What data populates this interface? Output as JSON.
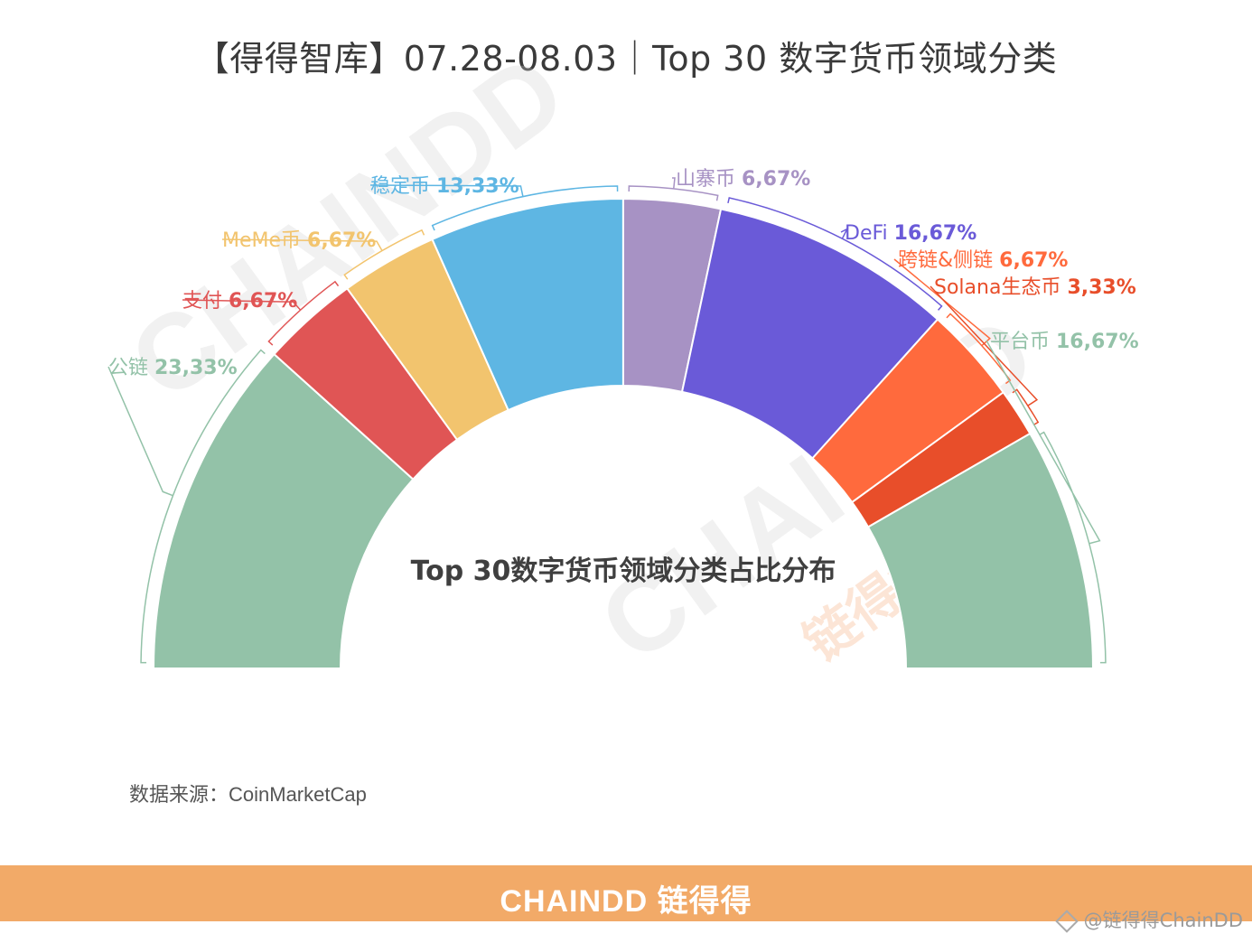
{
  "title": "【得得智库】07.28-08.03｜Top 30 数字货币领域分类",
  "watermark": {
    "text": "CHAINDD",
    "text_cn": "链得得"
  },
  "chart_data": {
    "type": "pie",
    "variant": "half-donut",
    "center_label": "Top 30数字货币领域分类占比分布",
    "slices": [
      {
        "label": "公链",
        "value": 23.33,
        "value_label": "23,33%",
        "color": "#93c2a8"
      },
      {
        "label": "支付",
        "value": 6.67,
        "value_label": "6,67%",
        "color": "#e05555"
      },
      {
        "label": "MeMe币",
        "value": 6.67,
        "value_label": "6,67%",
        "color": "#f2c46e"
      },
      {
        "label": "稳定币",
        "value": 13.33,
        "value_label": "13,33%",
        "color": "#5eb6e3"
      },
      {
        "label": "山寨币",
        "value": 6.67,
        "value_label": "6,67%",
        "color": "#a792c4"
      },
      {
        "label": "DeFi",
        "value": 16.67,
        "value_label": "16,67%",
        "color": "#6a5ad8"
      },
      {
        "label": "跨链&侧链",
        "value": 6.67,
        "value_label": "6,67%",
        "color": "#ff6a3d"
      },
      {
        "label": "Solana生态币",
        "value": 3.33,
        "value_label": "3,33%",
        "color": "#e84e2a"
      },
      {
        "label": "平台币",
        "value": 16.67,
        "value_label": "16,67%",
        "color": "#93c2a8"
      }
    ]
  },
  "source": "数据来源：CoinMarketCap",
  "footer": {
    "brand": "CHAINDD 链得得",
    "handle": "@链得得ChainDD",
    "handle_icon": "diamond-icon"
  }
}
